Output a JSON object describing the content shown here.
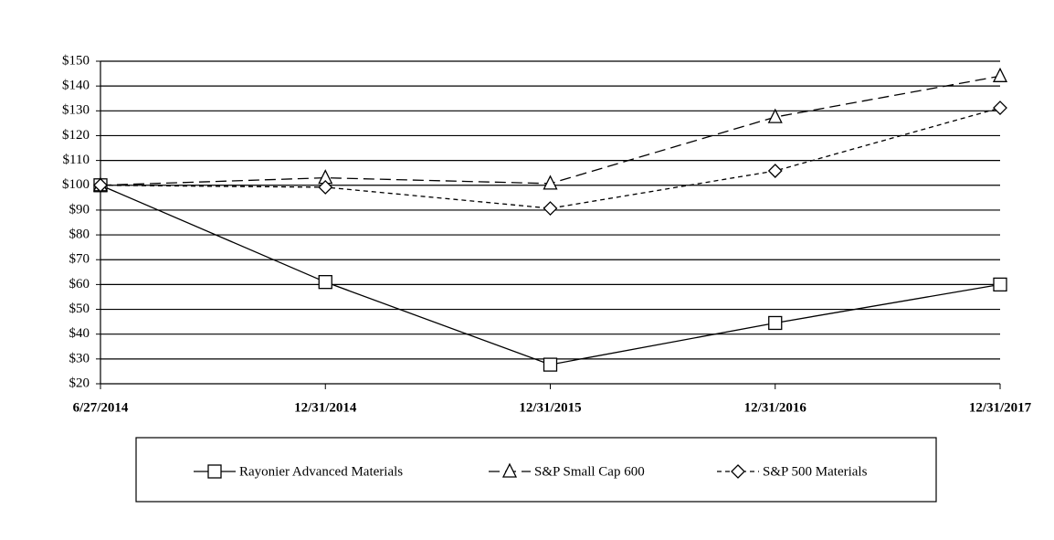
{
  "chart_data": {
    "type": "line",
    "categories": [
      "6/27/2014",
      "12/31/2014",
      "12/31/2015",
      "12/31/2016",
      "12/31/2017"
    ],
    "series": [
      {
        "name": "Rayonier Advanced Materials",
        "color": "#000000",
        "marker": "square",
        "line_style": "solid",
        "values": [
          100,
          61,
          27.7,
          44.5,
          60
        ]
      },
      {
        "name": "S&P Small Cap 600",
        "color": "#000000",
        "marker": "triangle",
        "line_style": "long-dash",
        "values": [
          100,
          103,
          100.7,
          127.5,
          144
        ]
      },
      {
        "name": "S&P 500 Materials",
        "color": "#000000",
        "marker": "diamond",
        "line_style": "short-dash",
        "values": [
          100,
          99.2,
          90.7,
          105.8,
          131.2
        ]
      }
    ],
    "ylim": [
      20,
      150
    ],
    "yticks": [
      {
        "value": 20,
        "label": "$20"
      },
      {
        "value": 30,
        "label": "$30"
      },
      {
        "value": 40,
        "label": "$40"
      },
      {
        "value": 50,
        "label": "$50"
      },
      {
        "value": 60,
        "label": "$60"
      },
      {
        "value": 70,
        "label": "$70"
      },
      {
        "value": 80,
        "label": "$80"
      },
      {
        "value": 90,
        "label": "$90"
      },
      {
        "value": 100,
        "label": "$100"
      },
      {
        "value": 110,
        "label": "$110"
      },
      {
        "value": 120,
        "label": "$120"
      },
      {
        "value": 130,
        "label": "$130"
      },
      {
        "value": 140,
        "label": "$140"
      },
      {
        "value": 150,
        "label": "$150"
      }
    ],
    "grid": true,
    "legend": "bottom"
  }
}
